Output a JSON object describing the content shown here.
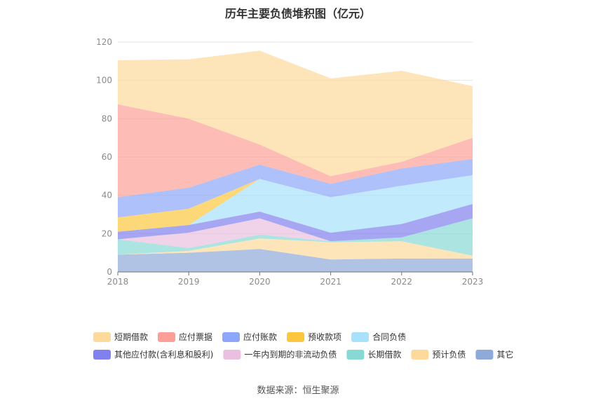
{
  "title": "历年主要负债堆积图（亿元）",
  "source": "数据来源：恒生聚源",
  "chart_data": {
    "type": "area",
    "stacked": true,
    "x": [
      "2018",
      "2019",
      "2020",
      "2021",
      "2022",
      "2023"
    ],
    "ylim": [
      0,
      120
    ],
    "yticks": [
      0,
      20,
      40,
      60,
      80,
      100,
      120
    ],
    "grid": true,
    "legend_position": "bottom",
    "series": [
      {
        "name": "其它",
        "color": "#8eaad8",
        "values": [
          9,
          10,
          12,
          6.5,
          7,
          7
        ]
      },
      {
        "name": "预计负债",
        "color": "#fdd99b",
        "values": [
          0,
          1,
          5.5,
          9,
          9,
          1.5
        ]
      },
      {
        "name": "长期借款",
        "color": "#88d8d4",
        "values": [
          8,
          1.5,
          2,
          0.5,
          2,
          19.5
        ]
      },
      {
        "name": "一年内到期的非流动负债",
        "color": "#eabfe0",
        "values": [
          0,
          8,
          8.5,
          0,
          0,
          0
        ]
      },
      {
        "name": "其他应付款(含利息和股利)",
        "color": "#8080ee",
        "values": [
          4,
          4,
          3.5,
          4.5,
          7,
          7.5
        ]
      },
      {
        "name": "合同负债",
        "color": "#a7e1fb",
        "values": [
          0,
          0,
          17,
          18.5,
          20,
          15
        ]
      },
      {
        "name": "预收款项",
        "color": "#fcc73f",
        "values": [
          7.5,
          8.5,
          0,
          0,
          0,
          0
        ]
      },
      {
        "name": "应付账款",
        "color": "#8ca7fa",
        "values": [
          10.5,
          11,
          7.5,
          7,
          9,
          8.5
        ]
      },
      {
        "name": "应付票据",
        "color": "#fc9f96",
        "values": [
          48.5,
          36,
          10.5,
          4,
          3.5,
          11
        ]
      },
      {
        "name": "短期借款",
        "color": "#fdd99b",
        "values": [
          23,
          31,
          49,
          51,
          47.5,
          27
        ]
      }
    ],
    "legend_order": [
      "短期借款",
      "应付票据",
      "应付账款",
      "预收款项",
      "合同负债",
      "其他应付款(含利息和股利)",
      "一年内到期的非流动负债",
      "长期借款",
      "预计负债",
      "其它"
    ]
  }
}
